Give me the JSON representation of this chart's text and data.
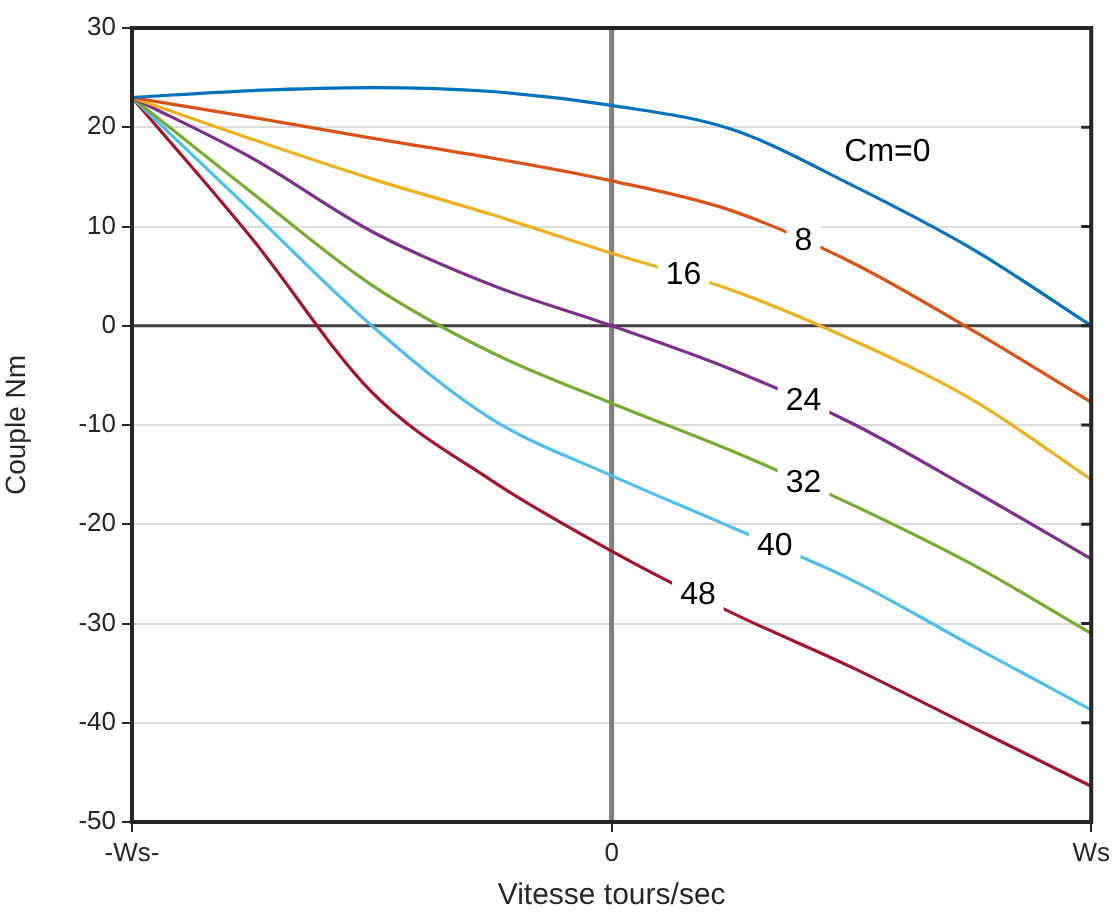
{
  "chart_data": {
    "type": "line",
    "xlabel": "Vitesse tours/sec",
    "ylabel": "Couple Nm",
    "categories": [
      "-Ws-",
      null,
      null,
      null,
      "0",
      null,
      null,
      null,
      "Ws"
    ],
    "ylim": [
      -50,
      30
    ],
    "yticks": [
      -50,
      -40,
      -30,
      -20,
      -10,
      0,
      10,
      20,
      30
    ],
    "grid": "y",
    "legend": false,
    "marker": "none",
    "line_style": "solid",
    "series": [
      {
        "name": "Cm=0",
        "color": "#0072bd",
        "values": [
          23,
          23.7,
          24,
          23.6,
          22.2,
          19.8,
          14.2,
          7.8,
          0
        ]
      },
      {
        "name": "8",
        "color": "#d95319",
        "values": [
          23,
          21,
          18.9,
          16.9,
          14.6,
          11.6,
          6.4,
          -0.4,
          -7.7
        ]
      },
      {
        "name": "16",
        "color": "#edb120",
        "values": [
          23,
          18.8,
          14.8,
          11.2,
          7.3,
          3.6,
          -1.4,
          -7.4,
          -15.5
        ]
      },
      {
        "name": "24",
        "color": "#7e2f8e",
        "values": [
          23,
          16.9,
          9.5,
          4.1,
          0,
          -4.4,
          -9.8,
          -16.5,
          -23.5
        ]
      },
      {
        "name": "32",
        "color": "#77ac30",
        "values": [
          23,
          13.4,
          4.1,
          -2.7,
          -7.8,
          -12.6,
          -18,
          -24,
          -31
        ]
      },
      {
        "name": "40",
        "color": "#4dbeee",
        "values": [
          23,
          11.5,
          0,
          -9.4,
          -15.1,
          -20.3,
          -25.6,
          -32.2,
          -38.7
        ]
      },
      {
        "name": "48",
        "color": "#a2142f",
        "values": [
          23,
          8.8,
          -6.7,
          -15.6,
          -22.7,
          -28.9,
          -34.4,
          -40.4,
          -46.4
        ]
      }
    ],
    "ref_lines": [
      {
        "axis": "x",
        "value": "0",
        "color": "#7f7f7f"
      },
      {
        "axis": "y",
        "value": 0,
        "color": "#404040"
      }
    ]
  }
}
